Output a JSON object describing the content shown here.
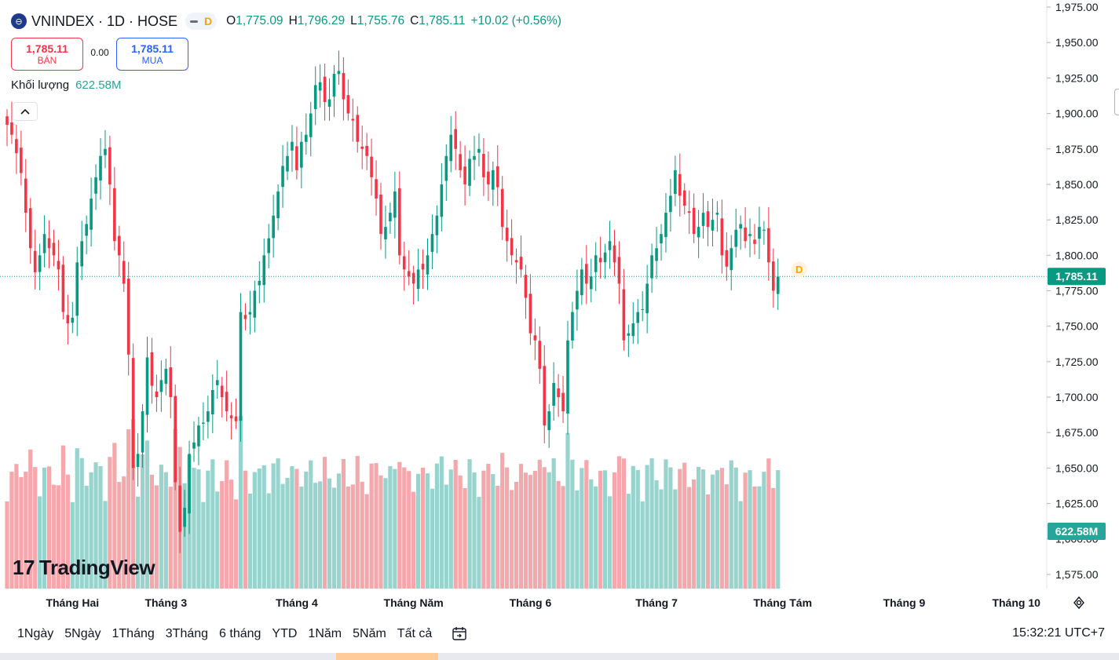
{
  "header": {
    "logo_glyph": "⊖",
    "symbol_title": "VNINDEX · 1D · HOSE",
    "interval_badge": "D",
    "open_label": "O",
    "open_value": "1,775.09",
    "high_label": "H",
    "high_value": "1,796.29",
    "low_label": "L",
    "low_value": "1,755.76",
    "close_label": "C",
    "close_value": "1,785.11",
    "change": "+10.02 (+0.56%)"
  },
  "trade": {
    "sell_price": "1,785.11",
    "sell_label": "BÁN",
    "spread": "0.00",
    "buy_price": "1,785.11",
    "buy_label": "MUA"
  },
  "volume_legend": {
    "label": "Khối lượng",
    "value": "622.58M"
  },
  "brand": {
    "name": "TradingView",
    "mark": "17"
  },
  "timeframes": [
    "1Ngày",
    "5Ngày",
    "1Tháng",
    "3Tháng",
    "6 tháng",
    "YTD",
    "1Năm",
    "5Năm",
    "Tất cả"
  ],
  "clock": "15:32:21 UTC+7",
  "colors": {
    "up": "#089981",
    "down": "#f23645",
    "vol_up": "#98d4cd",
    "vol_down": "#f5a8ac"
  },
  "chart_data": {
    "type": "candlestick",
    "price_axis": {
      "min": 1565,
      "max": 1980,
      "ticks": [
        1575,
        1600,
        1625,
        1650,
        1675,
        1700,
        1725,
        1750,
        1775,
        1800,
        1825,
        1850,
        1875,
        1900,
        1925,
        1950,
        1975
      ],
      "tick_labels": [
        "1,575.00",
        "1,600.00",
        "1,625.00",
        "1,650.00",
        "1,675.00",
        "1,700.00",
        "1,725.00",
        "1,750.00",
        "1,775.00",
        "1,800.00",
        "1,825.00",
        "1,850.00",
        "1,875.00",
        "1,900.00",
        "1,925.00",
        "1,950.00",
        "1,975.00"
      ]
    },
    "last_price": 1785.11,
    "last_price_label": "1,785.11",
    "last_volume_label": "622.58M",
    "series_marker": "D",
    "months": [
      {
        "label": "Tháng Hai",
        "index": 14
      },
      {
        "label": "Tháng 3",
        "index": 34
      },
      {
        "label": "Tháng 4",
        "index": 62
      },
      {
        "label": "Tháng Năm",
        "index": 87
      },
      {
        "label": "Tháng 6",
        "index": 112
      },
      {
        "label": "Tháng 7",
        "index": 139
      },
      {
        "label": "Tháng Tám",
        "index": 166
      },
      {
        "label": "Tháng 9",
        "index": 192
      },
      {
        "label": "Tháng 10",
        "index": 216
      }
    ],
    "closes": [
      1892,
      1885,
      1872,
      1858,
      1830,
      1805,
      1788,
      1800,
      1815,
      1805,
      1800,
      1790,
      1760,
      1752,
      1756,
      1795,
      1810,
      1822,
      1840,
      1855,
      1870,
      1875,
      1850,
      1810,
      1800,
      1780,
      1730,
      1650,
      1660,
      1690,
      1728,
      1708,
      1700,
      1712,
      1720,
      1700,
      1640,
      1605,
      1622,
      1660,
      1668,
      1680,
      1682,
      1690,
      1705,
      1712,
      1700,
      1690,
      1685,
      1683,
      1760,
      1755,
      1760,
      1775,
      1782,
      1800,
      1812,
      1828,
      1845,
      1863,
      1870,
      1880,
      1860,
      1880,
      1885,
      1900,
      1920,
      1922,
      1908,
      1910,
      1928,
      1930,
      1910,
      1900,
      1895,
      1880,
      1875,
      1870,
      1855,
      1840,
      1815,
      1820,
      1830,
      1845,
      1800,
      1790,
      1785,
      1780,
      1790,
      1790,
      1800,
      1815,
      1828,
      1850,
      1870,
      1885,
      1875,
      1860,
      1850,
      1868,
      1870,
      1875,
      1855,
      1850,
      1860,
      1848,
      1820,
      1810,
      1800,
      1795,
      1790,
      1770,
      1745,
      1740,
      1720,
      1680,
      1690,
      1710,
      1700,
      1690,
      1740,
      1760,
      1775,
      1790,
      1780,
      1785,
      1800,
      1795,
      1802,
      1810,
      1795,
      1780,
      1740,
      1745,
      1752,
      1760,
      1762,
      1780,
      1800,
      1805,
      1815,
      1830,
      1842,
      1860,
      1842,
      1835,
      1830,
      1815,
      1820,
      1830,
      1820,
      1825,
      1830,
      1800,
      1792,
      1805,
      1818,
      1822,
      1810,
      1815,
      1808,
      1820,
      1818,
      1795,
      1775,
      1785
    ],
    "volume_range": {
      "min": 0,
      "max": 760
    },
    "volume_note": "volume pane uses its own scale"
  }
}
